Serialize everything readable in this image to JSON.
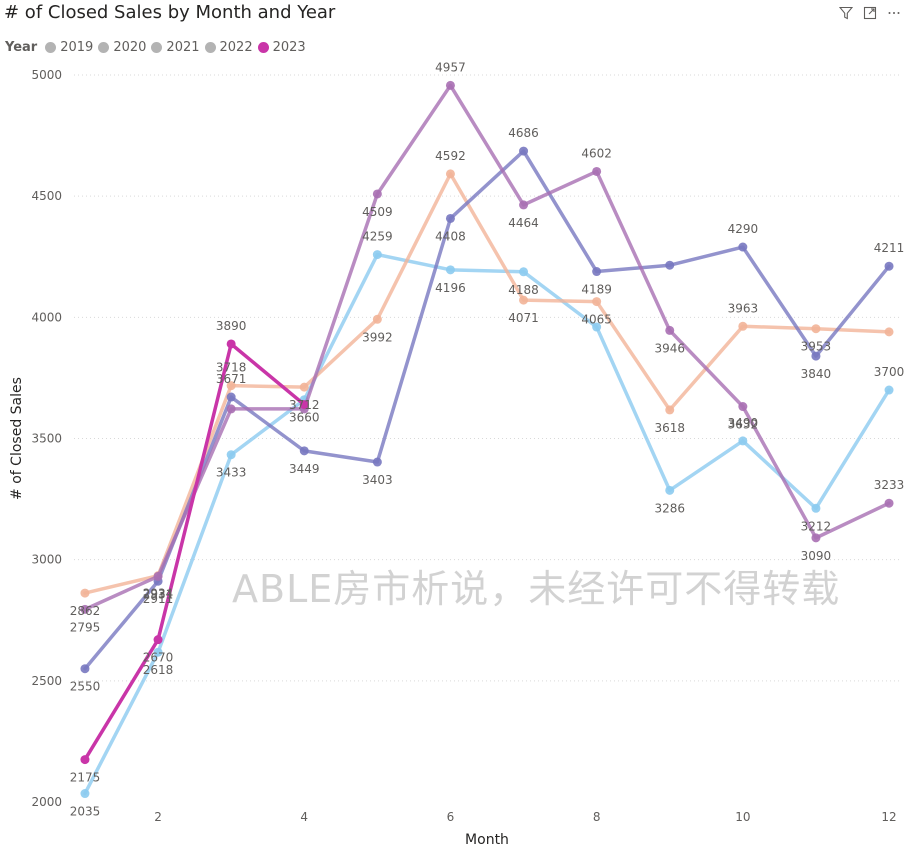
{
  "visual": {
    "title": "# of Closed Sales by Month and Year",
    "watermark": "ABLE房市析说，未经许可不得转载"
  },
  "header_icons": [
    "filter-icon",
    "focus-mode-icon",
    "more-options-icon"
  ],
  "chart_data": {
    "type": "line",
    "title": "# of Closed Sales by Month and Year",
    "xlabel": "Month",
    "ylabel": "# of Closed Sales",
    "xlim": [
      0.85,
      12.15
    ],
    "ylim": [
      2000,
      5000
    ],
    "x_ticks": [
      2,
      4,
      6,
      8,
      10,
      12
    ],
    "y_ticks": [
      2000,
      2500,
      3000,
      3500,
      4000,
      4500,
      5000
    ],
    "grid": true,
    "legend_title": "Year",
    "legend_position": "top-left",
    "legend_color": "#b3b3b3",
    "series": [
      {
        "name": "2019",
        "color": "#8ccbf0",
        "x": [
          1,
          2,
          3,
          4,
          5,
          6,
          7,
          8,
          9,
          10,
          11,
          12
        ],
        "values": [
          2035,
          2618,
          3433,
          3660,
          4259,
          4196,
          4188,
          3960,
          3286,
          3490,
          3212,
          3700
        ],
        "labels": [
          "2035",
          "2618",
          "3433",
          "3660",
          "4259",
          "4196",
          "4188",
          "",
          "3286",
          "3490",
          "3212",
          "3700"
        ]
      },
      {
        "name": "2020",
        "color": "#f2b498",
        "x": [
          1,
          2,
          3,
          4,
          5,
          6,
          7,
          8,
          9,
          10,
          11,
          12
        ],
        "values": [
          2862,
          2934,
          3718,
          3712,
          3992,
          4592,
          4071,
          4065,
          3618,
          3963,
          3953,
          3940
        ],
        "labels": [
          "2862",
          "2934",
          "3718",
          "3712",
          "3992",
          "4592",
          "4071",
          "4065",
          "3618",
          "3963",
          "3953",
          ""
        ]
      },
      {
        "name": "2021",
        "color": "#7878c0",
        "x": [
          1,
          2,
          3,
          4,
          5,
          6,
          7,
          8,
          9,
          10,
          11,
          12
        ],
        "values": [
          2550,
          2911,
          3671,
          3449,
          3403,
          4408,
          4686,
          4189,
          4215,
          4290,
          3840,
          4211
        ],
        "labels": [
          "2550",
          "2911",
          "3671",
          "3449",
          "3403",
          "4408",
          "4686",
          "4189",
          "",
          "4290",
          "3840",
          "4211"
        ]
      },
      {
        "name": "2022",
        "color": "#a86fb3",
        "x": [
          1,
          2,
          3,
          4,
          5,
          6,
          7,
          8,
          9,
          10,
          11,
          12
        ],
        "values": [
          2795,
          2931,
          3622,
          3622,
          4509,
          4957,
          4464,
          4602,
          3946,
          3632,
          3090,
          3233
        ],
        "labels": [
          "2795",
          "2931",
          "",
          "",
          "4509",
          "4957",
          "4464",
          "4602",
          "3946",
          "3632",
          "3090",
          "3233"
        ]
      },
      {
        "name": "2023",
        "color": "#c935a8",
        "x": [
          1,
          2,
          3,
          4
        ],
        "values": [
          2175,
          2670,
          3890,
          3640
        ],
        "labels": [
          "2175",
          "2670",
          "3890",
          ""
        ]
      }
    ]
  }
}
